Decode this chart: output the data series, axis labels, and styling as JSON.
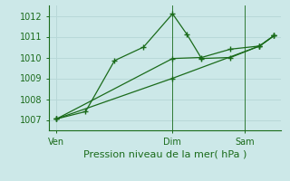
{
  "background_color": "#cce8e8",
  "grid_color": "#b8d8d8",
  "line_color": "#1a6b1a",
  "ylim": [
    1006.5,
    1012.5
  ],
  "yticks": [
    1007,
    1008,
    1009,
    1010,
    1011,
    1012
  ],
  "xlabel": "Pression niveau de la mer( hPa )",
  "xlabel_fontsize": 8,
  "tick_fontsize": 7,
  "xtick_positions": [
    0,
    8,
    13
  ],
  "xtick_labels": [
    "Ven",
    "Dim",
    "Sam"
  ],
  "xmin": -0.5,
  "xmax": 15.5,
  "line1_x": [
    0,
    2,
    4,
    6,
    8,
    9,
    10,
    12,
    14,
    15
  ],
  "line1_y": [
    1007.05,
    1007.4,
    1009.85,
    1010.5,
    1012.1,
    1011.1,
    1009.95,
    1010.0,
    1010.55,
    1011.05
  ],
  "line2_x": [
    0,
    8,
    14,
    15
  ],
  "line2_y": [
    1007.05,
    1009.0,
    1010.55,
    1011.05
  ],
  "line3_x": [
    0,
    8,
    10,
    12,
    14,
    15
  ],
  "line3_y": [
    1007.05,
    1009.95,
    1010.0,
    1010.4,
    1010.55,
    1011.05
  ],
  "vline_x": [
    8,
    13
  ],
  "marker": "+",
  "markersize": 5,
  "linewidth": 0.9
}
